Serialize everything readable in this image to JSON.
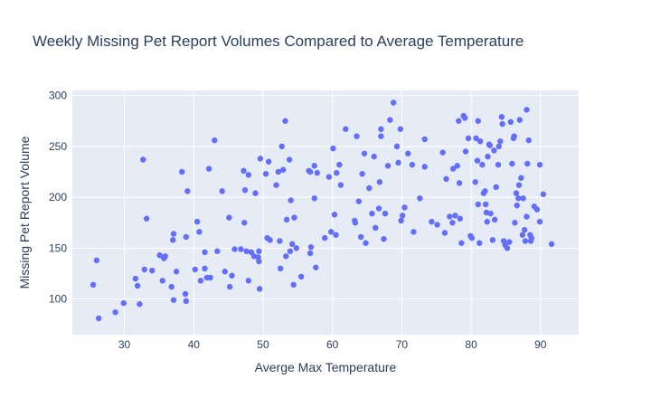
{
  "chart_data": {
    "type": "scatter",
    "title": "Weekly Missing Pet Report Volumes Compared to Average Temperature",
    "xlabel": "Averge Max Temperature",
    "ylabel": "Missing Pet Report Volume",
    "xlim": [
      22.5,
      95.5
    ],
    "ylim": [
      65,
      305
    ],
    "xticks": [
      30,
      40,
      50,
      60,
      70,
      80,
      90
    ],
    "yticks": [
      100,
      150,
      200,
      250,
      300
    ],
    "grid": true,
    "colors": {
      "marker": "#636efa",
      "plot_bg": "#e5ecf6",
      "grid": "#ffffff",
      "text": "#2a3f5f"
    },
    "points": [
      [
        25.5,
        114
      ],
      [
        26,
        138
      ],
      [
        26.3,
        81
      ],
      [
        28.7,
        87
      ],
      [
        29.9,
        96
      ],
      [
        31.6,
        120
      ],
      [
        31.9,
        113
      ],
      [
        32.2,
        95
      ],
      [
        32.7,
        237
      ],
      [
        32.9,
        129
      ],
      [
        33.2,
        179
      ],
      [
        34,
        128
      ],
      [
        35.1,
        143
      ],
      [
        35.5,
        118
      ],
      [
        35.7,
        140
      ],
      [
        35.9,
        142
      ],
      [
        36.8,
        112
      ],
      [
        37,
        158
      ],
      [
        37.1,
        164
      ],
      [
        37.1,
        99
      ],
      [
        37.5,
        127
      ],
      [
        38.3,
        225
      ],
      [
        38.8,
        105
      ],
      [
        38.9,
        161
      ],
      [
        38.9,
        98
      ],
      [
        39.1,
        206
      ],
      [
        40.2,
        129
      ],
      [
        40.5,
        176
      ],
      [
        40.8,
        166
      ],
      [
        41,
        118
      ],
      [
        41.6,
        130
      ],
      [
        41.6,
        146
      ],
      [
        41.9,
        121
      ],
      [
        42.2,
        228
      ],
      [
        42.4,
        121
      ],
      [
        43,
        256
      ],
      [
        43.4,
        147
      ],
      [
        44.1,
        206
      ],
      [
        44.5,
        127
      ],
      [
        45.1,
        180
      ],
      [
        45.2,
        112
      ],
      [
        45.5,
        123
      ],
      [
        45.9,
        149
      ],
      [
        46.8,
        149
      ],
      [
        47.2,
        226
      ],
      [
        47.3,
        175
      ],
      [
        47.4,
        207
      ],
      [
        47.6,
        147
      ],
      [
        47.9,
        222
      ],
      [
        47.9,
        118
      ],
      [
        48.3,
        146
      ],
      [
        48.7,
        142
      ],
      [
        48.9,
        204
      ],
      [
        49.3,
        141
      ],
      [
        49.4,
        147
      ],
      [
        49.4,
        137
      ],
      [
        49.5,
        110
      ],
      [
        49.6,
        238
      ],
      [
        50.4,
        223
      ],
      [
        50.6,
        160
      ],
      [
        50.8,
        235
      ],
      [
        51,
        158
      ],
      [
        51.9,
        212
      ],
      [
        52.2,
        225
      ],
      [
        52.4,
        157
      ],
      [
        52.5,
        130
      ],
      [
        52.7,
        250
      ],
      [
        52.9,
        227
      ],
      [
        53.2,
        275
      ],
      [
        53.3,
        142
      ],
      [
        53.4,
        178
      ],
      [
        53.8,
        237
      ],
      [
        53.9,
        147
      ],
      [
        54,
        197
      ],
      [
        54.2,
        154
      ],
      [
        54.4,
        114
      ],
      [
        54.5,
        180
      ],
      [
        54.8,
        150
      ],
      [
        55.5,
        122
      ],
      [
        56.6,
        226
      ],
      [
        56.8,
        225
      ],
      [
        56.8,
        145
      ],
      [
        56.9,
        151
      ],
      [
        57.4,
        231
      ],
      [
        57.4,
        199
      ],
      [
        57.6,
        131
      ],
      [
        57.8,
        224
      ],
      [
        58.9,
        160
      ],
      [
        59.5,
        220
      ],
      [
        59.8,
        166
      ],
      [
        60.1,
        248
      ],
      [
        60.3,
        183
      ],
      [
        60.5,
        163
      ],
      [
        60.6,
        224
      ],
      [
        61,
        232
      ],
      [
        61.2,
        212
      ],
      [
        61.9,
        267
      ],
      [
        63.2,
        177
      ],
      [
        63.3,
        175
      ],
      [
        63.5,
        260
      ],
      [
        63.8,
        196
      ],
      [
        64.1,
        161
      ],
      [
        64.3,
        223
      ],
      [
        64.6,
        243
      ],
      [
        64.8,
        155
      ],
      [
        65.3,
        209
      ],
      [
        65.7,
        184
      ],
      [
        66,
        240
      ],
      [
        66.2,
        170
      ],
      [
        66.7,
        189
      ],
      [
        66.8,
        215
      ],
      [
        67,
        260
      ],
      [
        67,
        267
      ],
      [
        67.4,
        159
      ],
      [
        67.6,
        184
      ],
      [
        68,
        231
      ],
      [
        68.3,
        276
      ],
      [
        68.8,
        293
      ],
      [
        69.3,
        250
      ],
      [
        69.5,
        234
      ],
      [
        69.8,
        267
      ],
      [
        69.9,
        177
      ],
      [
        70.1,
        182
      ],
      [
        70.4,
        190
      ],
      [
        70.9,
        243
      ],
      [
        71.5,
        232
      ],
      [
        71.7,
        166
      ],
      [
        72.6,
        199
      ],
      [
        73.3,
        257
      ],
      [
        73.3,
        230
      ],
      [
        74.3,
        176
      ],
      [
        75.1,
        173
      ],
      [
        75.9,
        244
      ],
      [
        76.2,
        165
      ],
      [
        76.4,
        218
      ],
      [
        76.9,
        181
      ],
      [
        77.3,
        175
      ],
      [
        77.4,
        228
      ],
      [
        77.7,
        182
      ],
      [
        78,
        231
      ],
      [
        78.2,
        275
      ],
      [
        78.3,
        214
      ],
      [
        78.4,
        179
      ],
      [
        78.6,
        155
      ],
      [
        78.9,
        280
      ],
      [
        79.1,
        278
      ],
      [
        79.2,
        245
      ],
      [
        79.6,
        258
      ],
      [
        79.9,
        162
      ],
      [
        80.1,
        160
      ],
      [
        80.6,
        215
      ],
      [
        80.7,
        258
      ],
      [
        80.9,
        236
      ],
      [
        81,
        193
      ],
      [
        81,
        275
      ],
      [
        81.2,
        155
      ],
      [
        81.3,
        255
      ],
      [
        81.6,
        232
      ],
      [
        81.8,
        204
      ],
      [
        82,
        206
      ],
      [
        82.1,
        193
      ],
      [
        82.2,
        185
      ],
      [
        82.3,
        176
      ],
      [
        82.4,
        240
      ],
      [
        82.6,
        252
      ],
      [
        82.7,
        251
      ],
      [
        82.8,
        184
      ],
      [
        83.1,
        158
      ],
      [
        83.3,
        246
      ],
      [
        83.4,
        178
      ],
      [
        83.6,
        210
      ],
      [
        83.9,
        232
      ],
      [
        84,
        250
      ],
      [
        84.2,
        255
      ],
      [
        84.4,
        279
      ],
      [
        84.5,
        272
      ],
      [
        84.7,
        157
      ],
      [
        84.9,
        153
      ],
      [
        85.2,
        150
      ],
      [
        85.5,
        156
      ],
      [
        85.7,
        274
      ],
      [
        85.9,
        233
      ],
      [
        86.1,
        258
      ],
      [
        86.2,
        260
      ],
      [
        86.3,
        175
      ],
      [
        86.5,
        204
      ],
      [
        86.6,
        192
      ],
      [
        86.8,
        199
      ],
      [
        86.9,
        212
      ],
      [
        87,
        276
      ],
      [
        87.2,
        219
      ],
      [
        87.4,
        163
      ],
      [
        87.5,
        199
      ],
      [
        87.7,
        168
      ],
      [
        87.8,
        157
      ],
      [
        88,
        181
      ],
      [
        88,
        286
      ],
      [
        88.1,
        233
      ],
      [
        88.3,
        256
      ],
      [
        88.5,
        163
      ],
      [
        88.6,
        157
      ],
      [
        88.7,
        160
      ],
      [
        89.1,
        191
      ],
      [
        89.5,
        188
      ],
      [
        89.9,
        176
      ],
      [
        89.9,
        232
      ],
      [
        90.4,
        203
      ],
      [
        91.6,
        154
      ]
    ]
  }
}
